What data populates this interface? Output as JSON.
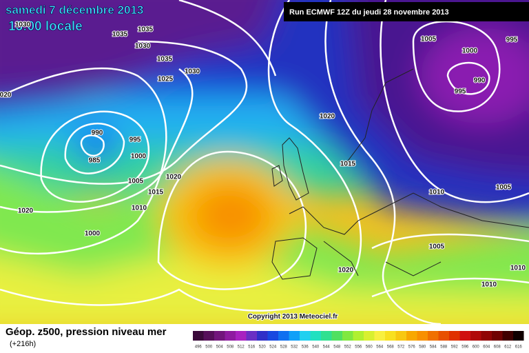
{
  "header": {
    "date": "samedi 7 décembre 2013",
    "time": "13:00 locale",
    "run": "Run ECMWF 12Z du jeudi 28 novembre 2013"
  },
  "isobar_labels": [
    "1030",
    "1035",
    "1035",
    "1030",
    "1035",
    "1030",
    "1025",
    "020",
    "990",
    "995",
    "985",
    "1000",
    "1005",
    "1020",
    "1015",
    "1010",
    "1020",
    "1000",
    "1020",
    "1015",
    "1005",
    "1000",
    "995",
    "995",
    "990",
    "1010",
    "1005",
    "1005",
    "1010",
    "1010",
    "1020"
  ],
  "copyright": "Copyright 2013 Meteociel.fr",
  "footer": {
    "title": "Géop. z500, pression niveau mer",
    "lead": "(+216h)"
  },
  "colorbar": {
    "labels": [
      "496",
      "500",
      "504",
      "508",
      "512",
      "516",
      "520",
      "524",
      "528",
      "532",
      "536",
      "540",
      "544",
      "548",
      "552",
      "556",
      "560",
      "564",
      "568",
      "572",
      "576",
      "580",
      "584",
      "588",
      "592",
      "596",
      "600",
      "604",
      "608",
      "612",
      "616"
    ],
    "colors": [
      "#3a0a3a",
      "#560f5a",
      "#72157c",
      "#8e1ba0",
      "#a822c0",
      "#6a2fc4",
      "#3030c8",
      "#1848e0",
      "#1070f0",
      "#10a0f8",
      "#20d0f0",
      "#20e0c0",
      "#30e090",
      "#50e060",
      "#80e840",
      "#b0f030",
      "#d8f030",
      "#f8f040",
      "#f8e020",
      "#f8c810",
      "#f8a800",
      "#f89000",
      "#f07000",
      "#e85000",
      "#e03000",
      "#d01010",
      "#b00808",
      "#900404",
      "#700202",
      "#400000",
      "#100000"
    ]
  }
}
